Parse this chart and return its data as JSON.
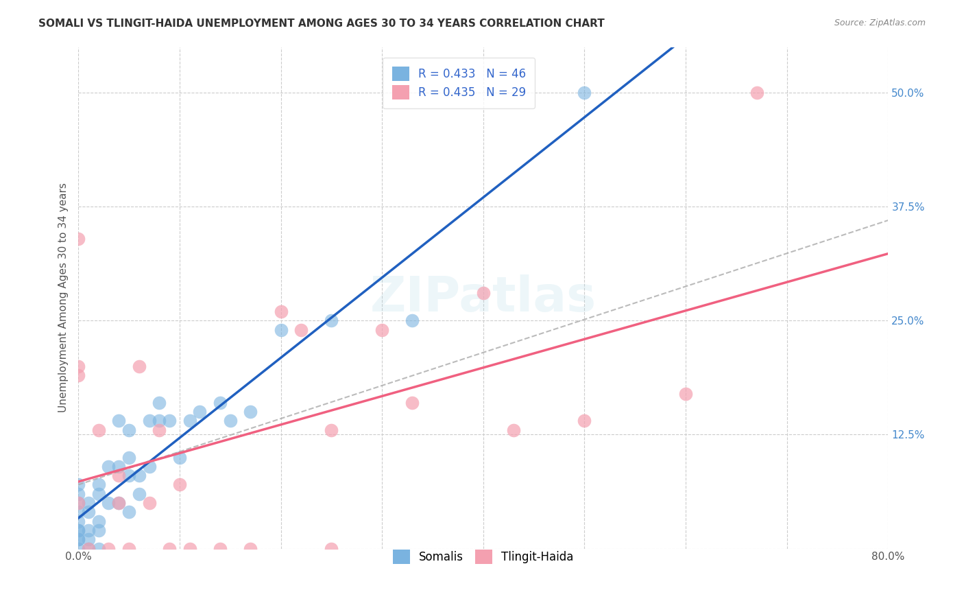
{
  "title": "SOMALI VS TLINGIT-HAIDA UNEMPLOYMENT AMONG AGES 30 TO 34 YEARS CORRELATION CHART",
  "source": "Source: ZipAtlas.com",
  "ylabel": "Unemployment Among Ages 30 to 34 years",
  "xlim": [
    0.0,
    0.8
  ],
  "ylim": [
    0.0,
    0.55
  ],
  "x_ticks": [
    0.0,
    0.1,
    0.2,
    0.3,
    0.4,
    0.5,
    0.6,
    0.7,
    0.8
  ],
  "y_ticks": [
    0.0,
    0.125,
    0.25,
    0.375,
    0.5
  ],
  "somali_R": 0.433,
  "somali_N": 46,
  "tlingit_R": 0.435,
  "tlingit_N": 29,
  "somali_color": "#7ab3e0",
  "tlingit_color": "#f4a0b0",
  "somali_line_color": "#2060c0",
  "tlingit_line_color": "#f06080",
  "dashed_line_color": "#aaaaaa",
  "background_color": "#ffffff",
  "grid_color": "#cccccc",
  "somali_x": [
    0.0,
    0.0,
    0.0,
    0.0,
    0.0,
    0.0,
    0.0,
    0.0,
    0.0,
    0.0,
    0.01,
    0.01,
    0.01,
    0.01,
    0.01,
    0.02,
    0.02,
    0.02,
    0.02,
    0.02,
    0.03,
    0.03,
    0.04,
    0.04,
    0.04,
    0.05,
    0.05,
    0.05,
    0.05,
    0.06,
    0.06,
    0.07,
    0.07,
    0.08,
    0.08,
    0.09,
    0.1,
    0.11,
    0.12,
    0.14,
    0.15,
    0.17,
    0.2,
    0.25,
    0.33,
    0.5
  ],
  "somali_y": [
    0.0,
    0.01,
    0.01,
    0.02,
    0.02,
    0.03,
    0.04,
    0.05,
    0.06,
    0.07,
    0.0,
    0.01,
    0.02,
    0.04,
    0.05,
    0.0,
    0.02,
    0.03,
    0.06,
    0.07,
    0.05,
    0.09,
    0.05,
    0.09,
    0.14,
    0.04,
    0.08,
    0.1,
    0.13,
    0.06,
    0.08,
    0.09,
    0.14,
    0.14,
    0.16,
    0.14,
    0.1,
    0.14,
    0.15,
    0.16,
    0.14,
    0.15,
    0.24,
    0.25,
    0.25,
    0.5
  ],
  "tlingit_x": [
    0.0,
    0.0,
    0.0,
    0.0,
    0.01,
    0.02,
    0.03,
    0.04,
    0.04,
    0.05,
    0.06,
    0.07,
    0.08,
    0.09,
    0.1,
    0.11,
    0.14,
    0.17,
    0.2,
    0.22,
    0.25,
    0.25,
    0.3,
    0.33,
    0.4,
    0.43,
    0.5,
    0.6,
    0.67
  ],
  "tlingit_y": [
    0.05,
    0.19,
    0.2,
    0.34,
    0.0,
    0.13,
    0.0,
    0.05,
    0.08,
    0.0,
    0.2,
    0.05,
    0.13,
    0.0,
    0.07,
    0.0,
    0.0,
    0.0,
    0.26,
    0.24,
    0.0,
    0.13,
    0.24,
    0.16,
    0.28,
    0.13,
    0.14,
    0.17,
    0.5
  ]
}
